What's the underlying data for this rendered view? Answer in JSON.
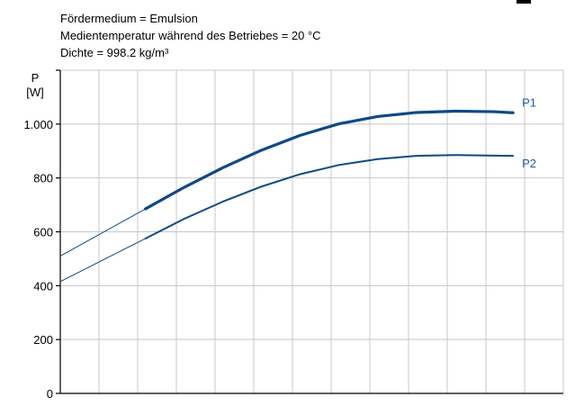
{
  "info": {
    "line1": "Fördermedium = Emulsion",
    "line2": "Medientemperatur während des Betriebes = 20 °C",
    "line3": "Dichte = 998.2 kg/m³"
  },
  "chart_data": {
    "type": "line",
    "title": "",
    "ylabel_quantity": "P",
    "ylabel_unit": "[W]",
    "xlabel": "",
    "ylim": [
      0,
      1200
    ],
    "xlim": [
      0,
      13
    ],
    "yticks": [
      0,
      200,
      400,
      600,
      800,
      1000,
      1200
    ],
    "ytick_labels": [
      "0",
      "200",
      "400",
      "600",
      "800",
      "1.000",
      ""
    ],
    "grid": true,
    "series_color": "#0d4a85",
    "label_color": "#1a5fa8",
    "series": [
      {
        "name": "P1",
        "extrapolated_x": [
          0,
          2.2
        ],
        "extrapolated_y": [
          510,
          685
        ],
        "x": [
          2.2,
          3.2,
          4.2,
          5.2,
          6.2,
          7.2,
          8.2,
          9.2,
          10.2,
          11.2,
          11.7
        ],
        "y": [
          685,
          765,
          838,
          903,
          958,
          1001,
          1028,
          1043,
          1048,
          1046,
          1042
        ]
      },
      {
        "name": "P2",
        "extrapolated_x": [
          0,
          2.2
        ],
        "extrapolated_y": [
          415,
          575
        ],
        "x": [
          2.2,
          3.2,
          4.2,
          5.2,
          6.2,
          7.2,
          8.2,
          9.2,
          10.2,
          11.2,
          11.7
        ],
        "y": [
          575,
          648,
          712,
          768,
          814,
          848,
          870,
          882,
          885,
          883,
          882
        ]
      }
    ]
  }
}
